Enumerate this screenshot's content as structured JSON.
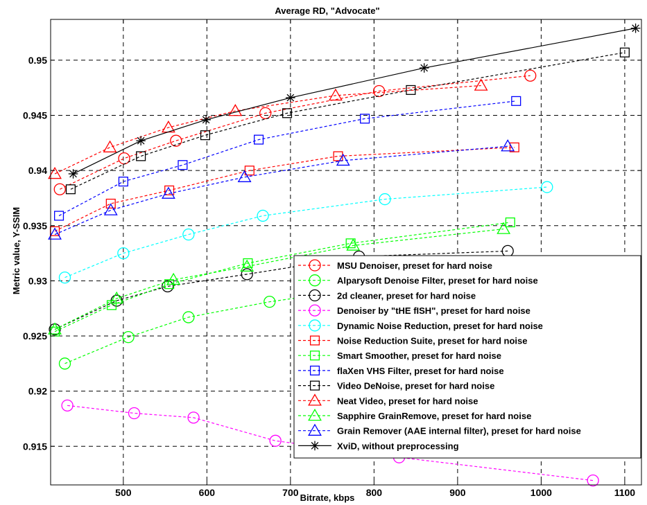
{
  "chart_data": {
    "type": "line",
    "title": "Average RD, \"Advocate\"",
    "xlabel": "Bitrate, kbps",
    "ylabel": "Metric value, Y-SSIM",
    "xlim": [
      413,
      1120
    ],
    "ylim": [
      0.9115,
      0.9537
    ],
    "x_ticks": [
      500,
      600,
      700,
      800,
      900,
      1000,
      1100
    ],
    "y_ticks": [
      0.915,
      0.92,
      0.925,
      0.93,
      0.935,
      0.94,
      0.945,
      0.95
    ],
    "x_tick_labels": [
      "500",
      "600",
      "700",
      "800",
      "900",
      "1000",
      "1100"
    ],
    "y_tick_labels": [
      "0.915",
      "0.92",
      "0.925",
      "0.93",
      "0.935",
      "0.94",
      "0.945",
      "0.95"
    ],
    "grid": true,
    "legend_position": "bottom-right",
    "series": [
      {
        "name": "MSU Denoiser, preset for hard noise",
        "color": "#ff0000",
        "marker": "circle",
        "dash": true,
        "points": [
          [
            424,
            0.9383
          ],
          [
            501,
            0.9411
          ],
          [
            563,
            0.9427
          ],
          [
            670,
            0.9452
          ],
          [
            806,
            0.9472
          ],
          [
            987,
            0.9486
          ]
        ]
      },
      {
        "name": "Alparysoft Denoise Filter, preset for hard noise",
        "color": "#00ff00",
        "marker": "circle",
        "dash": true,
        "points": [
          [
            430,
            0.9225
          ],
          [
            506,
            0.9249
          ],
          [
            578,
            0.9267
          ],
          [
            675,
            0.9281
          ],
          [
            805,
            0.9295
          ],
          [
            1012,
            0.9317
          ]
        ]
      },
      {
        "name": "2d cleaner, preset for hard noise",
        "color": "#000000",
        "marker": "circle",
        "dash": true,
        "points": [
          [
            418,
            0.9256
          ],
          [
            492,
            0.9282
          ],
          [
            553,
            0.9295
          ],
          [
            648,
            0.9306
          ],
          [
            782,
            0.9322
          ],
          [
            960,
            0.9327
          ]
        ]
      },
      {
        "name": "Denoiser by \"tHE fISH\", preset for hard noise",
        "color": "#ff00ff",
        "marker": "circle",
        "dash": true,
        "points": [
          [
            433,
            0.9187
          ],
          [
            513,
            0.918
          ],
          [
            584,
            0.9176
          ],
          [
            682,
            0.9155
          ],
          [
            830,
            0.914
          ],
          [
            1062,
            0.9119
          ]
        ]
      },
      {
        "name": "Dynamic Noise Reduction, preset for hard noise",
        "color": "#00ffff",
        "marker": "circle",
        "dash": true,
        "points": [
          [
            430,
            0.9303
          ],
          [
            500,
            0.9325
          ],
          [
            578,
            0.9342
          ],
          [
            667,
            0.9359
          ],
          [
            813,
            0.9374
          ],
          [
            1007,
            0.9385
          ]
        ]
      },
      {
        "name": "Noise Reduction Suite, preset for hard noise",
        "color": "#ff0000",
        "marker": "square",
        "dash": true,
        "points": [
          [
            418,
            0.9345
          ],
          [
            485,
            0.937
          ],
          [
            555,
            0.9382
          ],
          [
            651,
            0.94
          ],
          [
            757,
            0.9413
          ],
          [
            968,
            0.9421
          ]
        ]
      },
      {
        "name": "Smart Smoother, preset for hard noise",
        "color": "#00ff00",
        "marker": "square",
        "dash": true,
        "points": [
          [
            418,
            0.9254
          ],
          [
            486,
            0.9278
          ],
          [
            555,
            0.9297
          ],
          [
            649,
            0.9316
          ],
          [
            772,
            0.9334
          ],
          [
            963,
            0.9353
          ]
        ]
      },
      {
        "name": "flaXen VHS Filter, preset for hard noise",
        "color": "#0000ff",
        "marker": "square",
        "dash": true,
        "points": [
          [
            423,
            0.9359
          ],
          [
            500,
            0.939
          ],
          [
            571,
            0.9405
          ],
          [
            662,
            0.9428
          ],
          [
            789,
            0.9447
          ],
          [
            970,
            0.9463
          ]
        ]
      },
      {
        "name": "Video DeNoise, preset for hard noise",
        "color": "#000000",
        "marker": "square",
        "dash": true,
        "points": [
          [
            437,
            0.9383
          ],
          [
            521,
            0.9413
          ],
          [
            598,
            0.9432
          ],
          [
            696,
            0.9452
          ],
          [
            844,
            0.9473
          ],
          [
            1100,
            0.9507
          ]
        ]
      },
      {
        "name": "Neat Video, preset for hard noise",
        "color": "#ff0000",
        "marker": "triangle",
        "dash": true,
        "points": [
          [
            418,
            0.9397
          ],
          [
            484,
            0.9421
          ],
          [
            554,
            0.9439
          ],
          [
            634,
            0.9454
          ],
          [
            754,
            0.9468
          ],
          [
            928,
            0.9477
          ]
        ]
      },
      {
        "name": "Sapphire GrainRemove, preset for hard noise",
        "color": "#00ff00",
        "marker": "triangle",
        "dash": true,
        "points": [
          [
            418,
            0.9256
          ],
          [
            492,
            0.9284
          ],
          [
            560,
            0.9301
          ],
          [
            648,
            0.9313
          ],
          [
            775,
            0.9332
          ],
          [
            955,
            0.9347
          ]
        ]
      },
      {
        "name": "Grain Remover (AAE internal filter), preset for hard noise",
        "color": "#0000ff",
        "marker": "triangle",
        "dash": true,
        "points": [
          [
            418,
            0.9342
          ],
          [
            485,
            0.9364
          ],
          [
            554,
            0.9379
          ],
          [
            645,
            0.9394
          ],
          [
            763,
            0.9409
          ],
          [
            960,
            0.9422
          ]
        ]
      },
      {
        "name": "XviD, without preprocessing",
        "color": "#000000",
        "marker": "star",
        "dash": false,
        "points": [
          [
            440,
            0.9397
          ],
          [
            521,
            0.9427
          ],
          [
            599,
            0.9446
          ],
          [
            700,
            0.9466
          ],
          [
            860,
            0.9493
          ],
          [
            1113,
            0.9529
          ]
        ]
      }
    ]
  }
}
